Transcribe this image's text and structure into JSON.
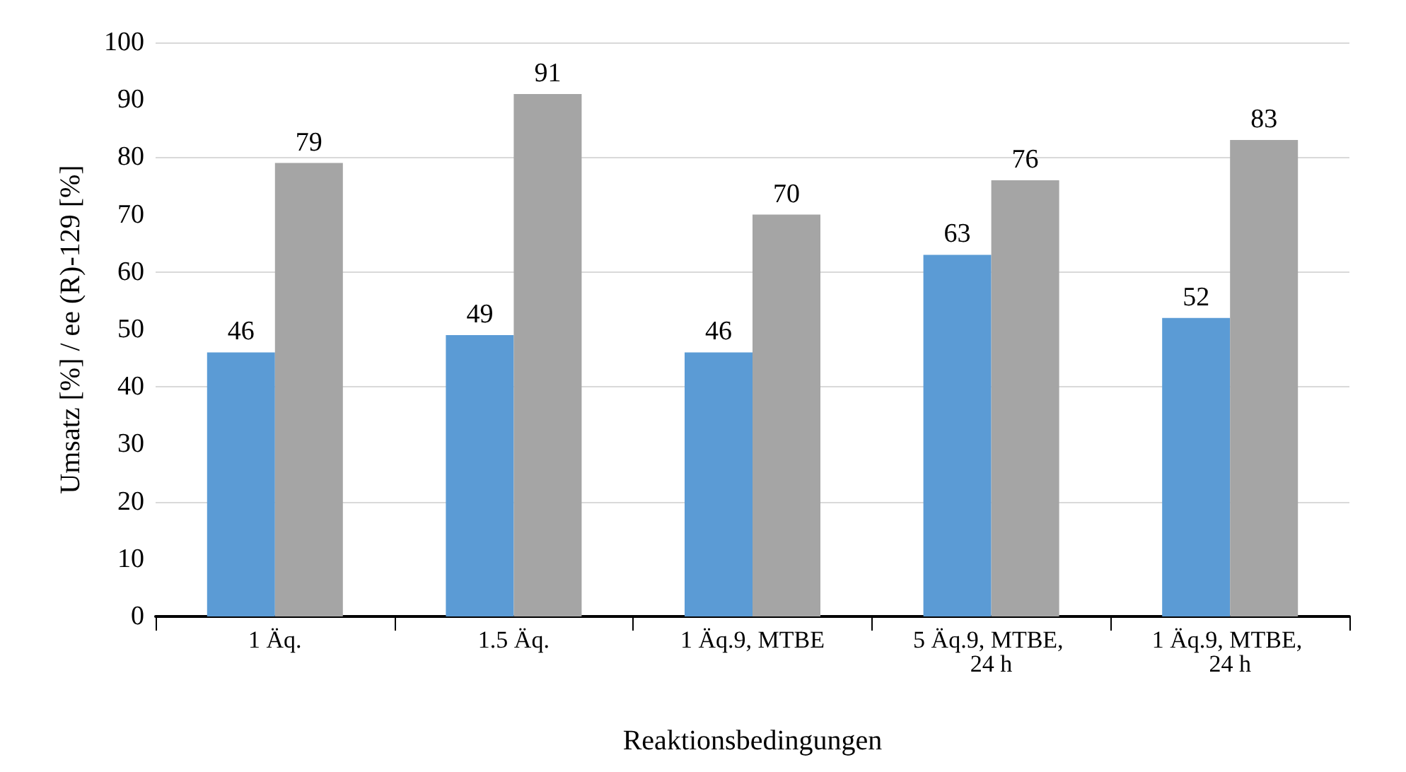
{
  "chart_data": {
    "type": "bar",
    "xlabel": "Reaktionsbedingungen",
    "ylabel": "Umsatz [%] / ee (R)-129 [%]",
    "categories": [
      "1 Äq.",
      "1.5 Äq.",
      "1 Äq.9, MTBE",
      "5 Äq.9, MTBE, 24 h",
      "1 Äq.9, MTBE, 24 h"
    ],
    "series": [
      {
        "color": "#5b9bd5",
        "values": [
          46,
          49,
          46,
          63,
          52
        ]
      },
      {
        "color": "#a5a5a5",
        "values": [
          79,
          91,
          70,
          76,
          83
        ]
      }
    ],
    "ylim": [
      0,
      100
    ],
    "yticks": [
      0,
      10,
      20,
      30,
      40,
      50,
      60,
      70,
      80,
      90,
      100
    ],
    "grid": "y",
    "data_labels": true
  }
}
